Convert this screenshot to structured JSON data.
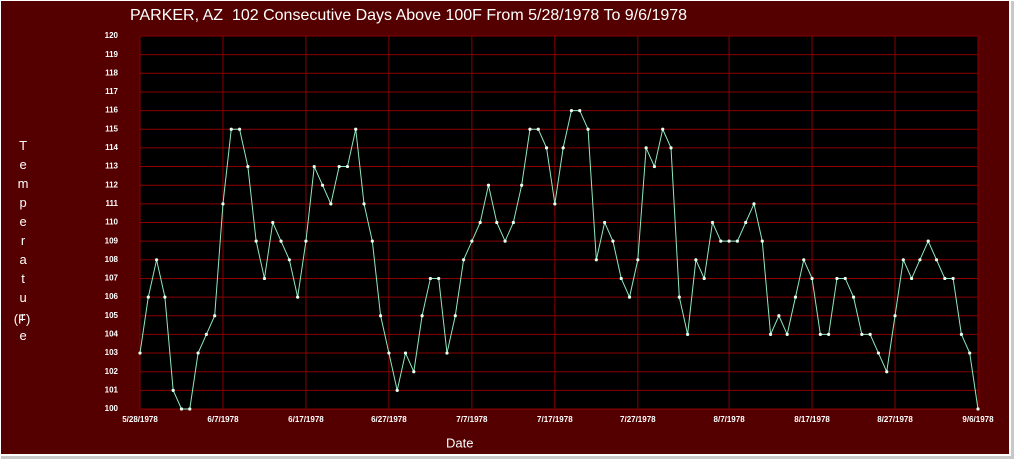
{
  "chart_data": {
    "type": "line",
    "title": "PARKER, AZ  102 Consecutive Days Above 100F From 5/28/1978 To 9/6/1978",
    "xlabel": "Date",
    "ylabel": "Temperature",
    "yunit": "(F)",
    "x": [
      "5/28/1978",
      "5/29/1978",
      "5/30/1978",
      "5/31/1978",
      "6/1/1978",
      "6/2/1978",
      "6/3/1978",
      "6/4/1978",
      "6/5/1978",
      "6/6/1978",
      "6/7/1978",
      "6/8/1978",
      "6/9/1978",
      "6/10/1978",
      "6/11/1978",
      "6/12/1978",
      "6/13/1978",
      "6/14/1978",
      "6/15/1978",
      "6/16/1978",
      "6/17/1978",
      "6/18/1978",
      "6/19/1978",
      "6/20/1978",
      "6/21/1978",
      "6/22/1978",
      "6/23/1978",
      "6/24/1978",
      "6/25/1978",
      "6/26/1978",
      "6/27/1978",
      "6/28/1978",
      "6/29/1978",
      "6/30/1978",
      "7/1/1978",
      "7/2/1978",
      "7/3/1978",
      "7/4/1978",
      "7/5/1978",
      "7/6/1978",
      "7/7/1978",
      "7/8/1978",
      "7/9/1978",
      "7/10/1978",
      "7/11/1978",
      "7/12/1978",
      "7/13/1978",
      "7/14/1978",
      "7/15/1978",
      "7/16/1978",
      "7/17/1978",
      "7/18/1978",
      "7/19/1978",
      "7/20/1978",
      "7/21/1978",
      "7/22/1978",
      "7/23/1978",
      "7/24/1978",
      "7/25/1978",
      "7/26/1978",
      "7/27/1978",
      "7/28/1978",
      "7/29/1978",
      "7/30/1978",
      "7/31/1978",
      "8/1/1978",
      "8/2/1978",
      "8/3/1978",
      "8/4/1978",
      "8/5/1978",
      "8/6/1978",
      "8/7/1978",
      "8/8/1978",
      "8/9/1978",
      "8/10/1978",
      "8/11/1978",
      "8/12/1978",
      "8/13/1978",
      "8/14/1978",
      "8/15/1978",
      "8/16/1978",
      "8/17/1978",
      "8/18/1978",
      "8/19/1978",
      "8/20/1978",
      "8/21/1978",
      "8/22/1978",
      "8/23/1978",
      "8/24/1978",
      "8/25/1978",
      "8/26/1978",
      "8/27/1978",
      "8/28/1978",
      "8/29/1978",
      "8/30/1978",
      "8/31/1978",
      "9/1/1978",
      "9/2/1978",
      "9/3/1978",
      "9/4/1978",
      "9/5/1978",
      "9/6/1978"
    ],
    "series": [
      {
        "color": "#8fe8c0",
        "values": [
          103,
          106,
          108,
          106,
          101,
          100,
          100,
          103,
          104,
          105,
          111,
          115,
          115,
          113,
          109,
          107,
          110,
          109,
          108,
          106,
          109,
          113,
          112,
          111,
          113,
          113,
          115,
          111,
          109,
          105,
          103,
          101,
          103,
          102,
          105,
          107,
          107,
          103,
          105,
          108,
          109,
          110,
          112,
          110,
          109,
          110,
          112,
          115,
          115,
          114,
          111,
          114,
          116,
          116,
          115,
          108,
          110,
          109,
          107,
          106,
          108,
          114,
          113,
          115,
          114,
          106,
          104,
          108,
          107,
          110,
          109,
          109,
          109,
          110,
          111,
          109,
          104,
          105,
          104,
          106,
          108,
          107,
          104,
          104,
          107,
          107,
          106,
          104,
          104,
          103,
          102,
          105,
          108,
          107,
          108,
          109,
          108,
          107,
          107,
          104,
          103,
          100
        ]
      }
    ],
    "xlim": [
      "5/28/1978",
      "9/6/1978"
    ],
    "xticks": [
      "5/28/1978",
      "6/7/1978",
      "6/17/1978",
      "6/27/1978",
      "7/7/1978",
      "7/17/1978",
      "7/27/1978",
      "8/7/1978",
      "8/17/1978",
      "8/27/1978",
      "9/6/1978"
    ],
    "ylim": [
      100,
      120
    ],
    "yticks": [
      100,
      101,
      102,
      103,
      104,
      105,
      106,
      107,
      108,
      109,
      110,
      111,
      112,
      113,
      114,
      115,
      116,
      117,
      118,
      119,
      120
    ],
    "grid": true
  }
}
